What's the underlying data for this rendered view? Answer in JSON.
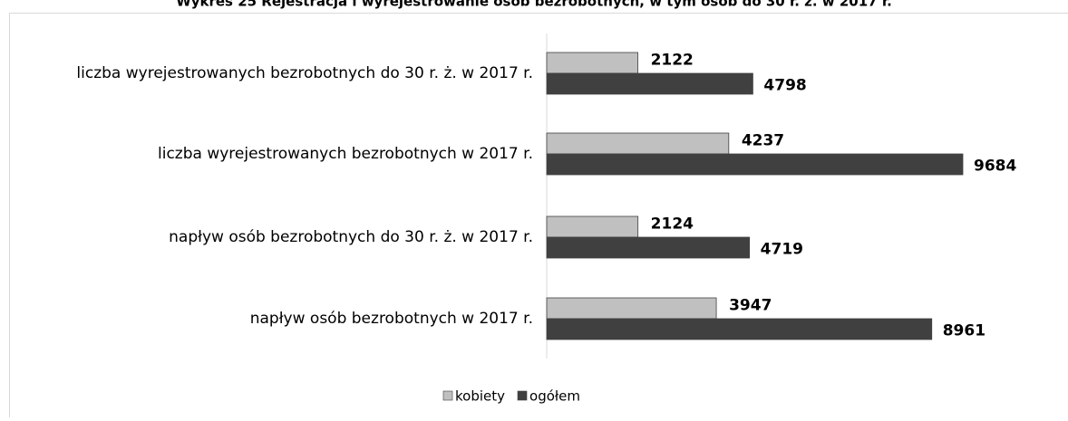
{
  "chart_data": {
    "type": "bar",
    "orientation": "horizontal",
    "title": "Wykres 25 Rejestracja i wyrejestrowanie osób bezrobotnych, w tym osób do 30 r. ż. w 2017 r.",
    "categories": [
      "liczba wyrejestrowanych bezrobotnych do 30 r. ż. w 2017 r.",
      "liczba wyrejestrowanych bezrobotnych w 2017 r.",
      "napływ osób bezrobotnych do 30 r. ż. w 2017 r.",
      "napływ osób bezrobotnych w 2017 r."
    ],
    "series": [
      {
        "name": "kobiety",
        "color": "#c0c0c0",
        "values": [
          2122,
          4237,
          2124,
          3947
        ]
      },
      {
        "name": "ogółem",
        "color": "#404040",
        "values": [
          4798,
          9684,
          4719,
          8961
        ]
      }
    ]
  }
}
